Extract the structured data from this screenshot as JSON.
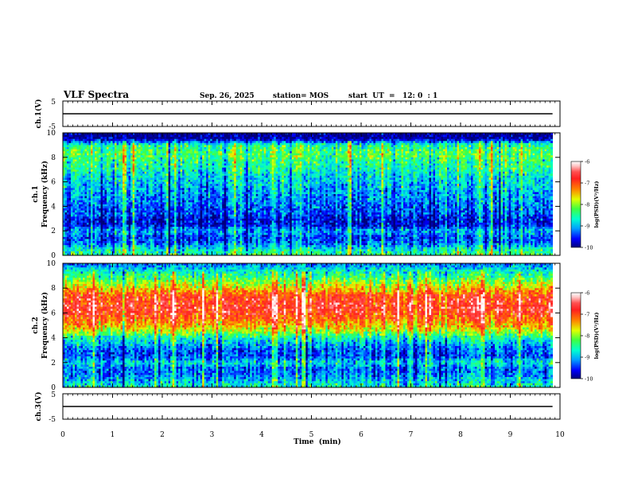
{
  "header": {
    "title": "VLF Spectra",
    "date": "Sep. 26, 2025",
    "station": "station= MOS",
    "start_ut": "start  UT  =   12: 0  : 1"
  },
  "colors": {
    "colormap": [
      "#00007a",
      "#0000ff",
      "#00a0ff",
      "#00ffd0",
      "#40ff40",
      "#e0ff00",
      "#ff8000",
      "#ff2020",
      "#ff5050",
      "#ffc8c8",
      "#ffffff"
    ],
    "trace": "#000000"
  },
  "chart_data": [
    {
      "type": "line",
      "name": "ch1-waveform",
      "ylabel": "ch.1(V)",
      "ylim": [
        -5,
        5
      ],
      "yticks": [
        "5",
        "-5"
      ],
      "x": [
        0,
        9.85
      ],
      "values": [
        0,
        0
      ]
    },
    {
      "type": "heatmap",
      "name": "ch1-spectrogram",
      "ylabel": "ch.1\nFrequency (kHz)",
      "ylim": [
        0,
        10
      ],
      "yticks": [
        "0",
        "2",
        "4",
        "6",
        "8",
        "10"
      ],
      "x_range_min": [
        0,
        9.85
      ],
      "profile_khz": [
        0,
        0.5,
        1,
        1.5,
        2,
        2.5,
        3,
        3.5,
        4,
        4.5,
        5,
        5.5,
        6,
        6.5,
        7,
        7.5,
        8,
        8.5,
        9,
        9.5,
        10
      ],
      "profile_logpsd": [
        -8.4,
        -8.7,
        -9.3,
        -9.4,
        -9.0,
        -9.7,
        -9.6,
        -9.4,
        -9.3,
        -9.2,
        -9.1,
        -9.0,
        -8.9,
        -8.8,
        -8.6,
        -8.5,
        -8.3,
        -8.3,
        -8.5,
        -9.9,
        -10.0
      ],
      "colorbar": {
        "label": "log(PSD)(V²/Hz)",
        "min": -10,
        "max": -6,
        "ticks": [
          "-6",
          "-7",
          "-8",
          "-9",
          "-10"
        ]
      }
    },
    {
      "type": "heatmap",
      "name": "ch2-spectrogram",
      "ylabel": "ch.2\nFrequency (kHz)",
      "ylim": [
        0,
        10
      ],
      "yticks": [
        "0",
        "2",
        "4",
        "6",
        "8",
        "10"
      ],
      "x_range_min": [
        0,
        9.85
      ],
      "profile_khz": [
        0,
        0.5,
        1,
        1.5,
        2,
        2.5,
        3,
        3.5,
        4,
        4.5,
        5,
        5.5,
        6,
        6.5,
        7,
        7.5,
        8,
        8.5,
        9,
        9.5,
        10
      ],
      "profile_logpsd": [
        -8.6,
        -8.9,
        -9.2,
        -9.3,
        -8.8,
        -9.4,
        -9.3,
        -9.0,
        -8.6,
        -7.9,
        -7.4,
        -7.1,
        -6.8,
        -6.7,
        -6.8,
        -7.0,
        -7.6,
        -8.0,
        -8.4,
        -8.8,
        -9.3
      ],
      "colorbar": {
        "label": "log(PSD)(V²/Hz)",
        "min": -10,
        "max": -6,
        "ticks": [
          "-6",
          "-7",
          "-8",
          "-9",
          "-10"
        ]
      }
    },
    {
      "type": "line",
      "name": "ch3-waveform",
      "ylabel": "ch.3(V)",
      "ylim": [
        -5,
        5
      ],
      "yticks": [
        "5",
        "-5"
      ],
      "x": [
        0,
        9.85
      ],
      "values": [
        0,
        0
      ]
    }
  ],
  "xaxis": {
    "label": "Time  (min)",
    "range": [
      0,
      10
    ],
    "ticks": [
      "0",
      "1",
      "2",
      "3",
      "4",
      "5",
      "6",
      "7",
      "8",
      "9",
      "10"
    ]
  }
}
